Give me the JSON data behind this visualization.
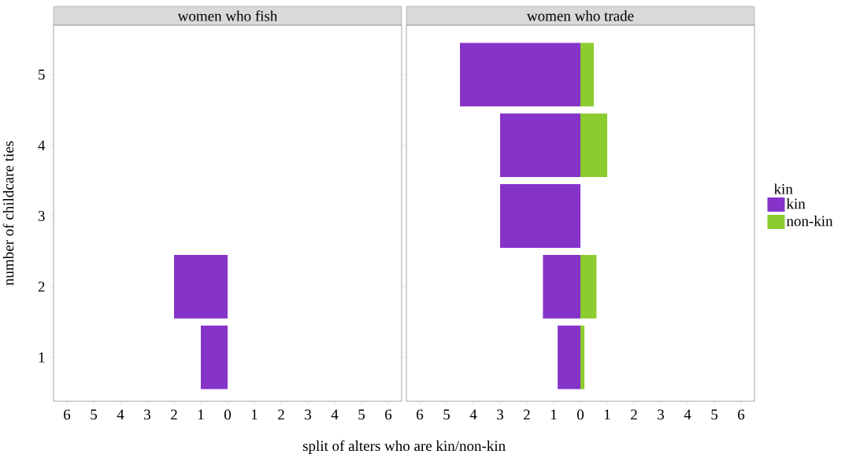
{
  "chart_data": [
    {
      "type": "bar",
      "orientation": "horizontal",
      "title": "women who fish",
      "ylabel": "number of childcare ties",
      "xlabel": "split of alters who are kin/non-kin",
      "categories": [
        "5",
        "4",
        "3",
        "2",
        "1"
      ],
      "series": [
        {
          "color": "#8533c9",
          "values": [
            null,
            null,
            null,
            -2,
            -1
          ]
        }
      ],
      "xlim": [
        -6.5,
        6.5
      ],
      "xticks": [
        {
          "value": -6,
          "label": "6"
        },
        {
          "value": -5,
          "label": "5"
        },
        {
          "value": -4,
          "label": "4"
        },
        {
          "value": -3,
          "label": "3"
        },
        {
          "value": -2,
          "label": "2"
        },
        {
          "value": -1,
          "label": "1"
        },
        0,
        1,
        2,
        3,
        4,
        5,
        6
      ],
      "grid": false,
      "legend": false
    },
    {
      "type": "bar",
      "orientation": "horizontal",
      "stacked": true,
      "title": "women who trade",
      "legend_title": "kin",
      "categories": [
        "5",
        "4",
        "3",
        "2",
        "1"
      ],
      "series": [
        {
          "name": "kin",
          "color": "#8533c9",
          "values": [
            -4.5,
            -3,
            -3,
            -1.4,
            -0.85
          ]
        },
        {
          "name": "non-kin",
          "color": "#8ccc2e",
          "values": [
            0.5,
            1,
            0,
            0.6,
            0.15
          ]
        }
      ],
      "xlim": [
        -6.5,
        6.5
      ],
      "xticks": [
        {
          "value": -6,
          "label": "6"
        },
        {
          "value": -5,
          "label": "5"
        },
        {
          "value": -4,
          "label": "4"
        },
        {
          "value": -3,
          "label": "3"
        },
        {
          "value": -2,
          "label": "2"
        },
        {
          "value": -1,
          "label": "1"
        },
        0,
        1,
        2,
        3,
        4,
        5,
        6
      ],
      "tick_labels": "x",
      "grid": false,
      "legend": "right"
    }
  ]
}
